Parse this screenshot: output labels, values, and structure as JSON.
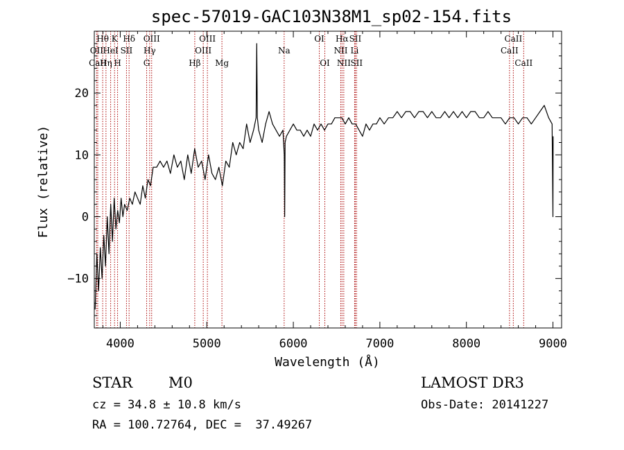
{
  "chart_data": {
    "type": "line",
    "title": "spec-57019-GAC103N38M1_sp02-154.fits",
    "xlabel": "Wavelength (Å)",
    "ylabel": "Flux (relative)",
    "xlim": [
      3700,
      9100
    ],
    "ylim": [
      -18,
      30
    ],
    "xticks": [
      4000,
      5000,
      6000,
      7000,
      8000,
      9000
    ],
    "xtick_labels": [
      "4000",
      "5000",
      "6000",
      "7000",
      "8000",
      "9000"
    ],
    "yticks": [
      -10,
      0,
      10,
      20
    ],
    "ytick_labels": [
      "−10",
      "0",
      "10",
      "20"
    ],
    "spectrum": {
      "x": [
        3710,
        3730,
        3750,
        3770,
        3790,
        3810,
        3830,
        3850,
        3870,
        3890,
        3910,
        3930,
        3950,
        3970,
        3990,
        4010,
        4030,
        4050,
        4080,
        4110,
        4140,
        4170,
        4200,
        4230,
        4260,
        4290,
        4320,
        4350,
        4380,
        4420,
        4460,
        4500,
        4540,
        4580,
        4620,
        4660,
        4700,
        4740,
        4780,
        4820,
        4860,
        4900,
        4940,
        4980,
        5020,
        5060,
        5100,
        5140,
        5180,
        5220,
        5260,
        5300,
        5340,
        5380,
        5420,
        5460,
        5500,
        5540,
        5570,
        5577,
        5584,
        5600,
        5640,
        5680,
        5720,
        5760,
        5800,
        5840,
        5880,
        5895,
        5900,
        5905,
        5920,
        5960,
        6000,
        6040,
        6080,
        6120,
        6160,
        6200,
        6240,
        6280,
        6320,
        6360,
        6400,
        6440,
        6480,
        6520,
        6560,
        6600,
        6640,
        6680,
        6720,
        6760,
        6800,
        6840,
        6880,
        6920,
        6960,
        7000,
        7050,
        7100,
        7150,
        7200,
        7250,
        7300,
        7350,
        7400,
        7450,
        7500,
        7550,
        7600,
        7650,
        7700,
        7750,
        7800,
        7850,
        7900,
        7950,
        8000,
        8050,
        8100,
        8150,
        8200,
        8250,
        8300,
        8350,
        8400,
        8450,
        8500,
        8550,
        8600,
        8650,
        8700,
        8750,
        8800,
        8850,
        8900,
        8950,
        8990,
        9000,
        9002
      ],
      "y": [
        -15,
        -6,
        -12,
        -5,
        -10,
        -3,
        -8,
        0,
        -6,
        2,
        -4,
        3,
        -2,
        1,
        -1,
        3,
        0,
        2,
        1,
        3,
        2,
        4,
        3,
        2,
        5,
        3,
        6,
        5,
        8,
        8,
        9,
        8,
        9,
        7,
        10,
        8,
        9,
        6,
        10,
        7,
        11,
        8,
        9,
        6,
        10,
        7,
        6,
        8,
        5,
        9,
        8,
        12,
        10,
        12,
        11,
        15,
        12,
        14,
        16,
        28,
        16,
        14,
        12,
        15,
        17,
        15,
        14,
        13,
        14,
        10,
        0,
        12,
        13,
        14,
        15,
        14,
        14,
        13,
        14,
        13,
        15,
        14,
        15,
        14,
        15,
        15,
        16,
        16,
        16,
        15,
        16,
        15,
        15,
        14,
        13,
        15,
        14,
        15,
        15,
        16,
        15,
        16,
        16,
        17,
        16,
        17,
        17,
        16,
        17,
        17,
        16,
        17,
        16,
        16,
        17,
        16,
        17,
        16,
        17,
        16,
        17,
        17,
        16,
        16,
        17,
        16,
        16,
        16,
        15,
        16,
        16,
        15,
        16,
        16,
        15,
        16,
        17,
        18,
        16,
        15,
        0,
        13
      ]
    },
    "lines": [
      {
        "name": "Hθ",
        "x": 3797,
        "row": 0
      },
      {
        "name": "OII",
        "x": 3727,
        "row": 1
      },
      {
        "name": "CaII",
        "x": 3740,
        "row": 2
      },
      {
        "name": "K",
        "x": 3934,
        "row": 0
      },
      {
        "name": "HeI",
        "x": 3889,
        "row": 1
      },
      {
        "name": "Hη",
        "x": 3835,
        "row": 2
      },
      {
        "name": "H",
        "x": 3969,
        "row": 2
      },
      {
        "name": "SII",
        "x": 4072,
        "row": 1
      },
      {
        "name": "Hδ",
        "x": 4102,
        "row": 0
      },
      {
        "name": "OIII",
        "x": 4363,
        "row": 0
      },
      {
        "name": "Hγ",
        "x": 4340,
        "row": 1
      },
      {
        "name": "G",
        "x": 4305,
        "row": 2
      },
      {
        "name": "Hβ",
        "x": 4861,
        "row": 2
      },
      {
        "name": "OIII",
        "x": 5007,
        "row": 0
      },
      {
        "name": "OIII",
        "x": 4959,
        "row": 1
      },
      {
        "name": "Mg",
        "x": 5175,
        "row": 2
      },
      {
        "name": "Na",
        "x": 5894,
        "row": 1
      },
      {
        "name": "OI",
        "x": 6300,
        "row": 0
      },
      {
        "name": "OI",
        "x": 6364,
        "row": 2
      },
      {
        "name": "Hα",
        "x": 6563,
        "row": 0
      },
      {
        "name": "NII",
        "x": 6548,
        "row": 1
      },
      {
        "name": "NII",
        "x": 6583,
        "row": 2
      },
      {
        "name": "SII",
        "x": 6716,
        "row": 0
      },
      {
        "name": "Li",
        "x": 6708,
        "row": 1
      },
      {
        "name": "SII",
        "x": 6731,
        "row": 2
      },
      {
        "name": "CaII",
        "x": 8542,
        "row": 0
      },
      {
        "name": "CaII",
        "x": 8498,
        "row": 1
      },
      {
        "name": "CaII",
        "x": 8662,
        "row": 2
      }
    ],
    "line_color": "#aa0000",
    "spectrum_color": "#000000"
  },
  "info": {
    "class_label": "STAR",
    "subclass": "M0",
    "survey": "LAMOST DR3",
    "cz": "cz = 34.8 ± 10.8 km/s",
    "obs_date": "Obs-Date: 20141227",
    "coords": "RA = 100.72764, DEC =  37.49267"
  }
}
